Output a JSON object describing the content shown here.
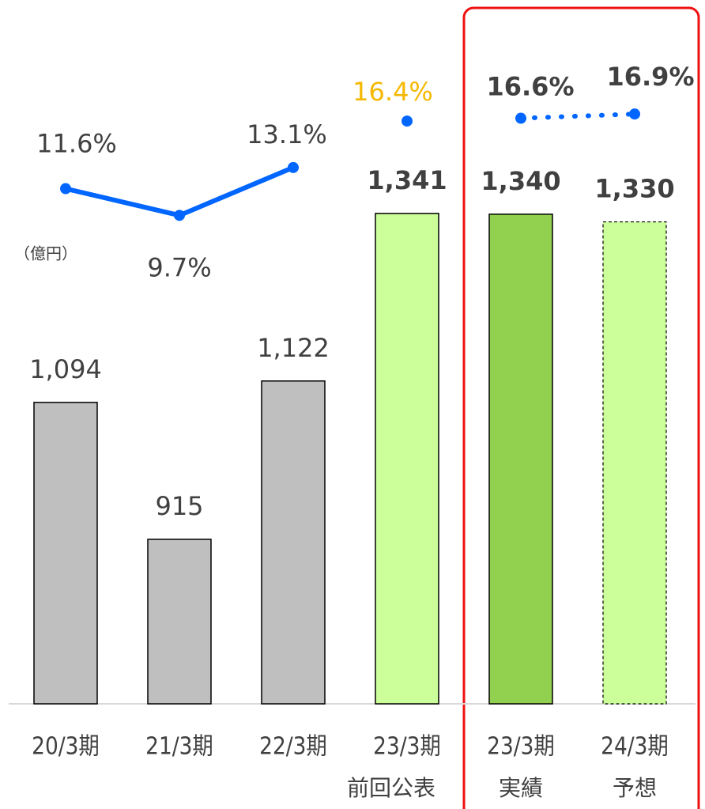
{
  "chart_data": {
    "type": "bar",
    "unit_label": "（億円）",
    "categories": [
      "20/3期",
      "21/3期",
      "22/3期",
      "23/3期",
      "23/3期",
      "24/3期"
    ],
    "category_sublabels": [
      null,
      null,
      null,
      "前回公表",
      "実績",
      "予想"
    ],
    "values": [
      1094,
      915,
      1122,
      1341,
      1340,
      1330
    ],
    "value_labels": [
      "1,094",
      "915",
      "1,122",
      "1,341",
      "1,340",
      "1,330"
    ],
    "colors": [
      "#bfbfbf",
      "#bfbfbf",
      "#bfbfbf",
      "#ccff99",
      "#92d050",
      "#ccff99"
    ],
    "dashed_bars": [
      false,
      false,
      false,
      false,
      false,
      true
    ],
    "ylim": [
      700,
      1620
    ],
    "y2lim": [
      -25,
      25
    ],
    "series": [
      {
        "type": "line",
        "axis": "y2",
        "color": "#0066ff",
        "label_color": "#404040",
        "dashed": false,
        "values": [
          11.6,
          9.7,
          13.1,
          null,
          16.6,
          null
        ],
        "value_labels": [
          "11.6%",
          "9.7%",
          "13.1%",
          null,
          "16.6%",
          null
        ]
      },
      {
        "type": "point",
        "axis": "y2",
        "color": "#0066ff",
        "label_color": "#f5b800",
        "dashed": false,
        "values": [
          null,
          null,
          null,
          16.4,
          null,
          null
        ],
        "value_labels": [
          null,
          null,
          null,
          "16.4%",
          null,
          null
        ]
      },
      {
        "type": "line",
        "axis": "y2",
        "color": "#0066ff",
        "label_color": "#404040",
        "dashed": true,
        "values": [
          null,
          null,
          null,
          null,
          null,
          16.9
        ],
        "value_labels": [
          null,
          null,
          null,
          null,
          null,
          "16.9%"
        ]
      }
    ]
  }
}
